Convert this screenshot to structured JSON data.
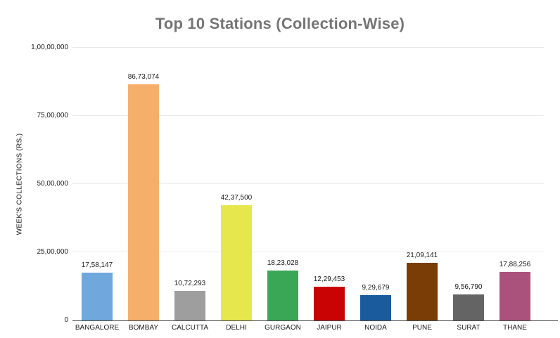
{
  "chart_data": {
    "type": "bar",
    "title": "Top 10 Stations (Collection-Wise)",
    "xlabel": "",
    "ylabel": "WEEK'S COLLECTIONS (RS.)",
    "categories": [
      "BANGALORE",
      "BOMBAY",
      "CALCUTTA",
      "DELHI",
      "GURGAON",
      "JAIPUR",
      "NOIDA",
      "PUNE",
      "SURAT",
      "THANE"
    ],
    "values": [
      1758147,
      8673074,
      1072293,
      4237500,
      1823028,
      1229453,
      929679,
      2109141,
      956790,
      1788256
    ],
    "value_labels": [
      "17,58,147",
      "86,73,074",
      "10,72,293",
      "42,37,500",
      "18,23,028",
      "12,29,453",
      "9,29,679",
      "21,09,141",
      "9,56,790",
      "17,88,256"
    ],
    "bar_colors": [
      "#6FA8DC",
      "#F5AF6B",
      "#9E9E9E",
      "#E6E74C",
      "#3AA757",
      "#C90303",
      "#1A5B9E",
      "#7A3D05",
      "#646464",
      "#AB527C"
    ],
    "ylim": [
      0,
      10000000
    ],
    "yticks": [
      0,
      2500000,
      5000000,
      7500000,
      10000000
    ],
    "ytick_labels": [
      "0",
      "25,00,000",
      "50,00,000",
      "75,00,000",
      "1,00,00,000"
    ],
    "grid": true,
    "legend": false,
    "colors": {
      "background": "#ffffff",
      "title": "#757575",
      "gridline": "#e9e9e9",
      "axis_line": "#4a4a4a",
      "label_text": "#1a1a1a"
    }
  }
}
